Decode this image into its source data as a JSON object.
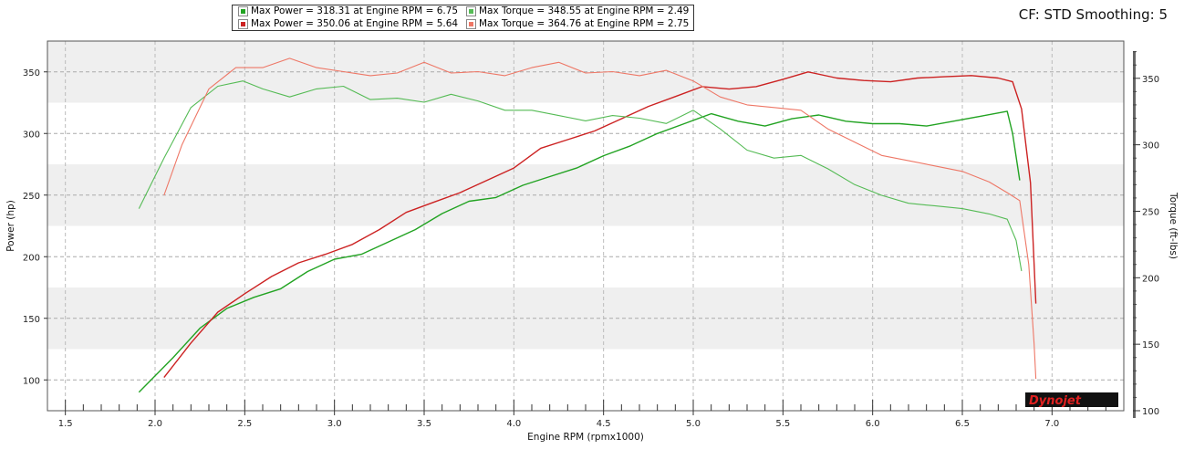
{
  "header": {
    "cf_title": "CF: STD Smoothing: 5"
  },
  "legend": [
    {
      "text": "Max Power = 318.31 at Engine RPM = 6.75",
      "color": "#22a322"
    },
    {
      "text": "Max Power = 350.06 at Engine RPM = 5.64",
      "color": "#cc2222"
    },
    {
      "text": "Max Torque = 348.55 at Engine RPM = 2.49",
      "color": "#55bb55"
    },
    {
      "text": "Max Torque = 364.76 at Engine RPM = 2.75",
      "color": "#ee7766"
    }
  ],
  "logo_text": "Dynojet",
  "chart_data": {
    "type": "line",
    "xlabel": "Engine RPM (rpmx1000)",
    "ylabel": "Power (hp)",
    "y2label": "Torque (ft-lbs)",
    "xlim": [
      1.5,
      7.0
    ],
    "ylim": [
      75,
      375
    ],
    "y2lim": [
      100,
      380
    ],
    "xticks": [
      1.5,
      2.0,
      2.5,
      3.0,
      3.5,
      4.0,
      4.5,
      5.0,
      5.5,
      6.0,
      6.5,
      7.0
    ],
    "xtick_labels": [
      "1.5",
      "2.0",
      "2.5",
      "3.0",
      "3.5",
      "4.0",
      "4.5",
      "5.0",
      "5.5",
      "6.0",
      "6.5",
      "7.0"
    ],
    "yticks": [
      100,
      150,
      200,
      250,
      300,
      350
    ],
    "ytick_labels": [
      "100",
      "150",
      "200",
      "250",
      "300",
      "350"
    ],
    "y2ticks": [
      100,
      150,
      200,
      250,
      300,
      350
    ],
    "y2tick_labels": [
      "100",
      "150",
      "200",
      "250",
      "300",
      "350"
    ],
    "grid": true,
    "series": [
      {
        "name": "Max Power = 318.31 at Engine RPM = 6.75",
        "axis": "left",
        "color": "#22a322",
        "x": [
          1.91,
          2.1,
          2.25,
          2.4,
          2.55,
          2.7,
          2.85,
          3.0,
          3.15,
          3.3,
          3.45,
          3.6,
          3.75,
          3.9,
          4.05,
          4.2,
          4.35,
          4.5,
          4.65,
          4.8,
          4.95,
          5.1,
          5.25,
          5.4,
          5.55,
          5.7,
          5.85,
          6.0,
          6.15,
          6.3,
          6.45,
          6.6,
          6.75,
          6.78,
          6.82
        ],
        "y": [
          90,
          118,
          142,
          158,
          167,
          174,
          188,
          198,
          202,
          212,
          222,
          235,
          245,
          248,
          258,
          265,
          272,
          282,
          290,
          300,
          308,
          316,
          310,
          306,
          312,
          315,
          310,
          308,
          308,
          306,
          310,
          314,
          318,
          300,
          262
        ]
      },
      {
        "name": "Max Power = 350.06 at Engine RPM = 5.64",
        "axis": "left",
        "color": "#cc2222",
        "x": [
          2.05,
          2.2,
          2.35,
          2.5,
          2.65,
          2.8,
          2.95,
          3.1,
          3.25,
          3.4,
          3.55,
          3.7,
          3.85,
          4.0,
          4.15,
          4.3,
          4.45,
          4.6,
          4.75,
          4.9,
          5.05,
          5.2,
          5.35,
          5.5,
          5.64,
          5.8,
          5.95,
          6.1,
          6.25,
          6.4,
          6.55,
          6.7,
          6.78,
          6.83,
          6.88,
          6.91
        ],
        "y": [
          102,
          130,
          155,
          170,
          184,
          195,
          202,
          210,
          222,
          236,
          244,
          252,
          262,
          272,
          288,
          295,
          302,
          312,
          322,
          330,
          338,
          336,
          338,
          344,
          350,
          345,
          343,
          342,
          345,
          346,
          347,
          345,
          342,
          320,
          260,
          162
        ]
      },
      {
        "name": "Max Torque = 348.55 at Engine RPM = 2.49",
        "axis": "right",
        "color": "#55bb55",
        "x": [
          1.91,
          2.05,
          2.2,
          2.35,
          2.49,
          2.6,
          2.75,
          2.9,
          3.05,
          3.2,
          3.35,
          3.5,
          3.65,
          3.8,
          3.95,
          4.1,
          4.25,
          4.4,
          4.55,
          4.7,
          4.85,
          5.0,
          5.15,
          5.3,
          5.45,
          5.6,
          5.75,
          5.9,
          6.05,
          6.2,
          6.35,
          6.5,
          6.65,
          6.75,
          6.8,
          6.83
        ],
        "y": [
          252,
          290,
          328,
          344,
          348,
          342,
          336,
          342,
          344,
          334,
          335,
          332,
          338,
          333,
          326,
          326,
          322,
          318,
          322,
          320,
          316,
          326,
          312,
          296,
          290,
          292,
          282,
          270,
          262,
          256,
          254,
          252,
          248,
          244,
          228,
          205
        ]
      },
      {
        "name": "Max Torque = 364.76 at Engine RPM = 2.75",
        "axis": "right",
        "color": "#ee7766",
        "x": [
          2.05,
          2.15,
          2.3,
          2.45,
          2.6,
          2.75,
          2.9,
          3.05,
          3.2,
          3.35,
          3.5,
          3.65,
          3.8,
          3.95,
          4.1,
          4.25,
          4.4,
          4.55,
          4.7,
          4.85,
          5.0,
          5.15,
          5.3,
          5.45,
          5.6,
          5.75,
          5.9,
          6.05,
          6.2,
          6.35,
          6.5,
          6.65,
          6.75,
          6.82,
          6.87,
          6.9,
          6.91
        ],
        "y": [
          262,
          300,
          342,
          358,
          358,
          365,
          358,
          355,
          352,
          354,
          362,
          354,
          355,
          352,
          358,
          362,
          354,
          355,
          352,
          356,
          348,
          336,
          330,
          328,
          326,
          312,
          302,
          292,
          288,
          284,
          280,
          272,
          264,
          258,
          210,
          150,
          124
        ]
      }
    ]
  }
}
